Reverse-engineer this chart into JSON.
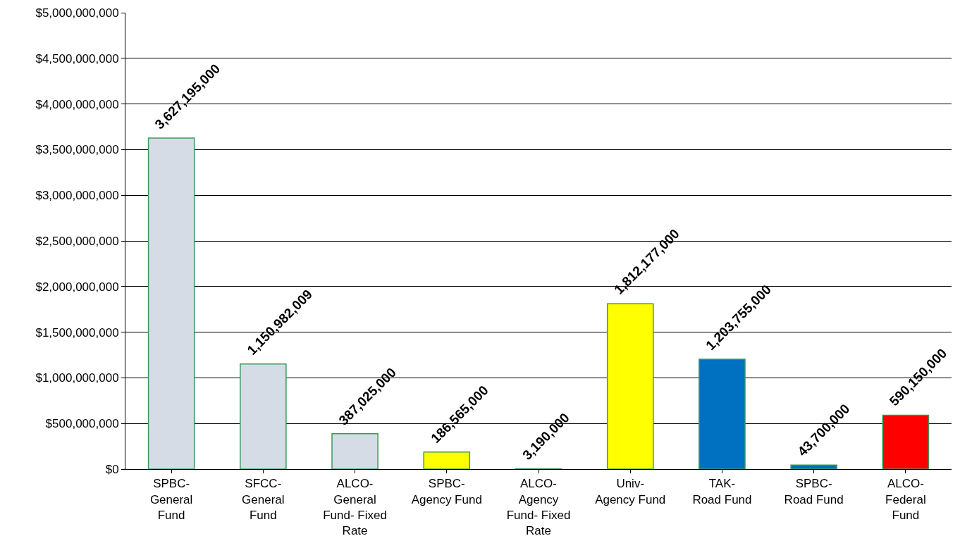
{
  "chart_data": {
    "type": "bar",
    "categories": [
      "SPBC-General Fund",
      "SFCC-General Fund",
      "ALCO-General Fund- Fixed Rate",
      "SPBC-Agency Fund",
      "ALCO-Agency Fund- Fixed Rate",
      "Univ-Agency Fund",
      "TAK-Road Fund",
      "SPBC-Road Fund",
      "ALCO-Federal Fund"
    ],
    "values": [
      3627195000,
      1150982009,
      387025000,
      186565000,
      3190000,
      1812177000,
      1203755000,
      43700000,
      590150000
    ],
    "colors": [
      "#d6dce5",
      "#d6dce5",
      "#d6dce5",
      "#ffff00",
      "#ffff00",
      "#ffff00",
      "#0070c0",
      "#0070c0",
      "#ff0000"
    ],
    "ylim": [
      0,
      5000000000
    ],
    "yticks": [
      {
        "value": 0,
        "label": "$0"
      },
      {
        "value": 500000000,
        "label": "$500,000,000"
      },
      {
        "value": 1000000000,
        "label": "$1,000,000,000"
      },
      {
        "value": 1500000000,
        "label": "$1,500,000,000"
      },
      {
        "value": 2000000000,
        "label": "$2,000,000,000"
      },
      {
        "value": 2500000000,
        "label": "$2,500,000,000"
      },
      {
        "value": 3000000000,
        "label": "$3,000,000,000"
      },
      {
        "value": 3500000000,
        "label": "$3,500,000,000"
      },
      {
        "value": 4000000000,
        "label": "$4,000,000,000"
      },
      {
        "value": 4500000000,
        "label": "$4,500,000,000"
      },
      {
        "value": 5000000000,
        "label": "$5,000,000,000"
      }
    ],
    "value_labels": [
      "3,627,195,000",
      "1,150,982,009",
      "387,025,000",
      "186,565,000",
      "3,190,000",
      "1,812,177,000",
      "1,203,755,000",
      "43,700,000",
      "590,150,000"
    ],
    "grid": "y"
  }
}
